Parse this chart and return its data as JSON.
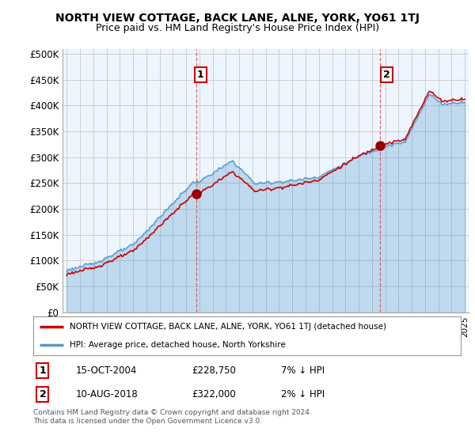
{
  "title": "NORTH VIEW COTTAGE, BACK LANE, ALNE, YORK, YO61 1TJ",
  "subtitle": "Price paid vs. HM Land Registry's House Price Index (HPI)",
  "ylabel_ticks": [
    "£0",
    "£50K",
    "£100K",
    "£150K",
    "£200K",
    "£250K",
    "£300K",
    "£350K",
    "£400K",
    "£450K",
    "£500K"
  ],
  "ytick_values": [
    0,
    50000,
    100000,
    150000,
    200000,
    250000,
    300000,
    350000,
    400000,
    450000,
    500000
  ],
  "ylim": [
    0,
    510000
  ],
  "legend_line1": "NORTH VIEW COTTAGE, BACK LANE, ALNE, YORK, YO61 1TJ (detached house)",
  "legend_line2": "HPI: Average price, detached house, North Yorkshire",
  "annotation1_label": "1",
  "annotation1_date": "15-OCT-2004",
  "annotation1_price": "£228,750",
  "annotation1_hpi": "7% ↓ HPI",
  "annotation2_label": "2",
  "annotation2_date": "10-AUG-2018",
  "annotation2_price": "£322,000",
  "annotation2_hpi": "2% ↓ HPI",
  "footnote": "Contains HM Land Registry data © Crown copyright and database right 2024.\nThis data is licensed under the Open Government Licence v3.0.",
  "line_color_property": "#cc0000",
  "line_color_hpi": "#5599cc",
  "fill_color_hpi": "#ddeeff",
  "background_color": "#ffffff",
  "grid_color": "#cccccc",
  "sale1_year": 2004.79,
  "sale1_price": 228750,
  "sale2_year": 2018.61,
  "sale2_price": 322000,
  "vline1_year": 2004.79,
  "vline2_year": 2018.61
}
